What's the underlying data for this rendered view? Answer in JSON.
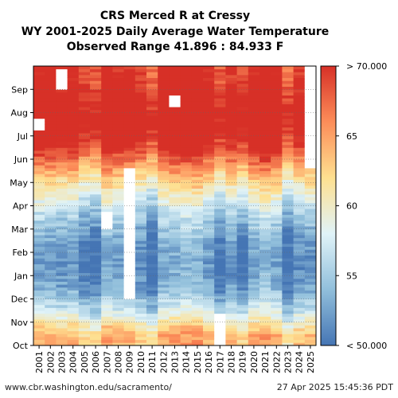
{
  "chart_data": {
    "type": "heatmap",
    "title_lines": [
      "CRS Merced R at Cressy",
      "WY 2001-2025 Daily Average Water Temperature",
      "Observed Range 41.896 : 84.933 F"
    ],
    "x_categories": [
      "2001",
      "2002",
      "2003",
      "2004",
      "2005",
      "2006",
      "2007",
      "2008",
      "2009",
      "2010",
      "2011",
      "2012",
      "2013",
      "2014",
      "2015",
      "2016",
      "2017",
      "2018",
      "2019",
      "2020",
      "2021",
      "2022",
      "2023",
      "2024",
      "2025"
    ],
    "y_month_labels": [
      "Oct",
      "Nov",
      "Dec",
      "Jan",
      "Feb",
      "Mar",
      "Apr",
      "May",
      "Jun",
      "Jul",
      "Aug",
      "Sep"
    ],
    "y_axis_note": "water-year months, Oct at bottom to Sep at top",
    "colorbar": {
      "min": 50,
      "max": 70,
      "tick_values": [
        50,
        55,
        60,
        65,
        70
      ],
      "tick_labels": [
        "< 50.000",
        "55",
        "60",
        "65",
        "> 70.000"
      ],
      "colors": [
        "#4575b4",
        "#91bfdb",
        "#e0f3f8",
        "#fee090",
        "#fc8d59",
        "#d73027"
      ]
    },
    "monthly_typical_temp_F": {
      "Oct": 63.5,
      "Nov": 57,
      "Dec": 52.5,
      "Jan": 51.5,
      "Feb": 52.5,
      "Mar": 55,
      "Apr": 59,
      "May": 64,
      "Jun": 70,
      "Jul": 73,
      "Aug": 72,
      "Sep": 70
    },
    "year_offsets_F": {
      "2001": 1.0,
      "2002": 0.5,
      "2003": 0.0,
      "2004": 0.5,
      "2005": -1.5,
      "2006": -2.0,
      "2007": 1.5,
      "2008": 0.5,
      "2009": 0.5,
      "2010": -0.5,
      "2011": -2.5,
      "2012": 1.0,
      "2013": 1.5,
      "2014": 2.0,
      "2015": 2.0,
      "2016": 0.5,
      "2017": -2.0,
      "2018": 0.0,
      "2019": -1.5,
      "2020": 1.0,
      "2021": 2.0,
      "2022": 1.0,
      "2023": -2.5,
      "2024": -0.5,
      "2025": 0.0
    },
    "missing_data_note": "white cells indicate missing data (e.g. 2009 Dec-May, 2017 Oct-Nov, 2025 Jun-Sep)"
  },
  "footer": {
    "source": "www.cbr.washington.edu/sacramento/",
    "timestamp": "27 Apr 2025 15:45:36 PDT"
  }
}
